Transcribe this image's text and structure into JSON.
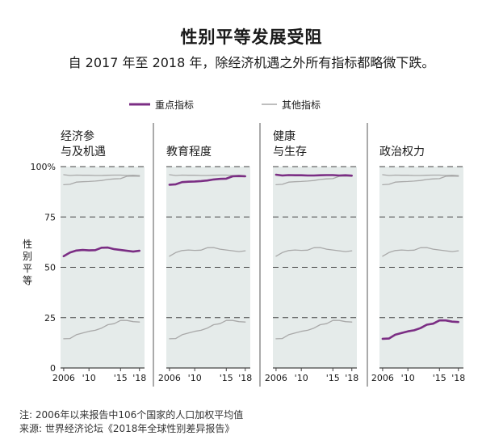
{
  "title": "性别平等发展受阻",
  "subtitle": "自 2017 年至 2018 年，除经济机遇之外所有指标都略微下跌。",
  "legend": {
    "key_label": "重点指标",
    "other_label": "其他指标"
  },
  "footnote": {
    "note": "注: 2006年以来报告中106个国家的人口加权平均值",
    "source": "来源: 世界经济论坛《2018年全球性别差异报告》"
  },
  "colors": {
    "highlight": "#7b2e84",
    "other": "#a9a9a9",
    "panel_bg": "#e5ebea",
    "grid": "#444444"
  },
  "chart_data": {
    "type": "line",
    "ylabel": "性别平等",
    "ylim": [
      0,
      100
    ],
    "yticks": [
      0,
      25,
      50,
      75,
      100
    ],
    "ytick_labels": [
      "0",
      "25",
      "50",
      "75",
      "100%"
    ],
    "xlim": [
      2005.5,
      2018.8
    ],
    "xticks": [
      2006,
      2010,
      2015,
      2018
    ],
    "xtick_labels": [
      "2006",
      "'10",
      "'15",
      "'18"
    ],
    "x": [
      2006,
      2007,
      2008,
      2009,
      2010,
      2011,
      2012,
      2013,
      2014,
      2015,
      2016,
      2017,
      2018
    ],
    "series": [
      {
        "name": "经济参与及机遇",
        "values": [
          55.5,
          57.3,
          58.3,
          58.6,
          58.4,
          58.5,
          59.7,
          59.8,
          59.0,
          58.6,
          58.2,
          57.8,
          58.2
        ]
      },
      {
        "name": "教育程度",
        "values": [
          91.0,
          91.2,
          92.3,
          92.5,
          92.6,
          92.8,
          93.1,
          93.6,
          93.9,
          94.0,
          95.2,
          95.3,
          95.2
        ]
      },
      {
        "name": "健康与生存",
        "values": [
          96.0,
          95.6,
          95.8,
          95.7,
          95.7,
          95.6,
          95.6,
          95.7,
          95.8,
          95.8,
          95.6,
          95.7,
          95.5
        ]
      },
      {
        "name": "政治权力",
        "values": [
          14.5,
          14.6,
          16.5,
          17.4,
          18.2,
          18.7,
          19.8,
          21.5,
          22.0,
          23.6,
          23.6,
          23.0,
          22.8
        ]
      }
    ],
    "panels": [
      {
        "title_lines": [
          "经济参",
          "与及机遇"
        ],
        "highlight": 0
      },
      {
        "title_lines": [
          "教育程度"
        ],
        "highlight": 1
      },
      {
        "title_lines": [
          "健康",
          "与生存"
        ],
        "highlight": 2
      },
      {
        "title_lines": [
          "政治权力"
        ],
        "highlight": 3
      }
    ]
  }
}
